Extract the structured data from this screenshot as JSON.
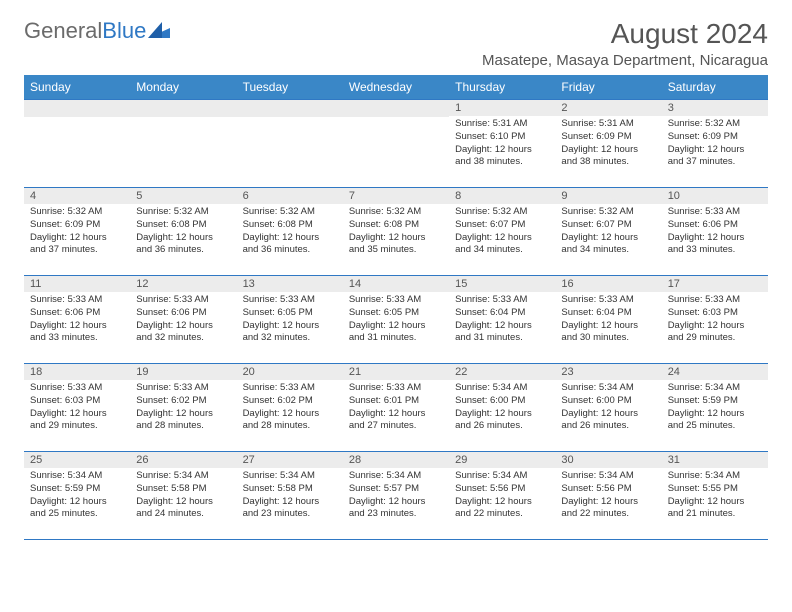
{
  "brand": {
    "part1": "General",
    "part2": "Blue"
  },
  "title": "August 2024",
  "location": "Masatepe, Masaya Department, Nicaragua",
  "colors": {
    "header_bg": "#3a87c7",
    "header_text": "#ffffff",
    "border": "#2f78c4",
    "daynum_bg": "#ececec",
    "text": "#333333",
    "title_text": "#555555"
  },
  "weekdays": [
    "Sunday",
    "Monday",
    "Tuesday",
    "Wednesday",
    "Thursday",
    "Friday",
    "Saturday"
  ],
  "weeks": [
    [
      {
        "n": "",
        "sr": "",
        "ss": "",
        "dl": ""
      },
      {
        "n": "",
        "sr": "",
        "ss": "",
        "dl": ""
      },
      {
        "n": "",
        "sr": "",
        "ss": "",
        "dl": ""
      },
      {
        "n": "",
        "sr": "",
        "ss": "",
        "dl": ""
      },
      {
        "n": "1",
        "sr": "Sunrise: 5:31 AM",
        "ss": "Sunset: 6:10 PM",
        "dl": "Daylight: 12 hours and 38 minutes."
      },
      {
        "n": "2",
        "sr": "Sunrise: 5:31 AM",
        "ss": "Sunset: 6:09 PM",
        "dl": "Daylight: 12 hours and 38 minutes."
      },
      {
        "n": "3",
        "sr": "Sunrise: 5:32 AM",
        "ss": "Sunset: 6:09 PM",
        "dl": "Daylight: 12 hours and 37 minutes."
      }
    ],
    [
      {
        "n": "4",
        "sr": "Sunrise: 5:32 AM",
        "ss": "Sunset: 6:09 PM",
        "dl": "Daylight: 12 hours and 37 minutes."
      },
      {
        "n": "5",
        "sr": "Sunrise: 5:32 AM",
        "ss": "Sunset: 6:08 PM",
        "dl": "Daylight: 12 hours and 36 minutes."
      },
      {
        "n": "6",
        "sr": "Sunrise: 5:32 AM",
        "ss": "Sunset: 6:08 PM",
        "dl": "Daylight: 12 hours and 36 minutes."
      },
      {
        "n": "7",
        "sr": "Sunrise: 5:32 AM",
        "ss": "Sunset: 6:08 PM",
        "dl": "Daylight: 12 hours and 35 minutes."
      },
      {
        "n": "8",
        "sr": "Sunrise: 5:32 AM",
        "ss": "Sunset: 6:07 PM",
        "dl": "Daylight: 12 hours and 34 minutes."
      },
      {
        "n": "9",
        "sr": "Sunrise: 5:32 AM",
        "ss": "Sunset: 6:07 PM",
        "dl": "Daylight: 12 hours and 34 minutes."
      },
      {
        "n": "10",
        "sr": "Sunrise: 5:33 AM",
        "ss": "Sunset: 6:06 PM",
        "dl": "Daylight: 12 hours and 33 minutes."
      }
    ],
    [
      {
        "n": "11",
        "sr": "Sunrise: 5:33 AM",
        "ss": "Sunset: 6:06 PM",
        "dl": "Daylight: 12 hours and 33 minutes."
      },
      {
        "n": "12",
        "sr": "Sunrise: 5:33 AM",
        "ss": "Sunset: 6:06 PM",
        "dl": "Daylight: 12 hours and 32 minutes."
      },
      {
        "n": "13",
        "sr": "Sunrise: 5:33 AM",
        "ss": "Sunset: 6:05 PM",
        "dl": "Daylight: 12 hours and 32 minutes."
      },
      {
        "n": "14",
        "sr": "Sunrise: 5:33 AM",
        "ss": "Sunset: 6:05 PM",
        "dl": "Daylight: 12 hours and 31 minutes."
      },
      {
        "n": "15",
        "sr": "Sunrise: 5:33 AM",
        "ss": "Sunset: 6:04 PM",
        "dl": "Daylight: 12 hours and 31 minutes."
      },
      {
        "n": "16",
        "sr": "Sunrise: 5:33 AM",
        "ss": "Sunset: 6:04 PM",
        "dl": "Daylight: 12 hours and 30 minutes."
      },
      {
        "n": "17",
        "sr": "Sunrise: 5:33 AM",
        "ss": "Sunset: 6:03 PM",
        "dl": "Daylight: 12 hours and 29 minutes."
      }
    ],
    [
      {
        "n": "18",
        "sr": "Sunrise: 5:33 AM",
        "ss": "Sunset: 6:03 PM",
        "dl": "Daylight: 12 hours and 29 minutes."
      },
      {
        "n": "19",
        "sr": "Sunrise: 5:33 AM",
        "ss": "Sunset: 6:02 PM",
        "dl": "Daylight: 12 hours and 28 minutes."
      },
      {
        "n": "20",
        "sr": "Sunrise: 5:33 AM",
        "ss": "Sunset: 6:02 PM",
        "dl": "Daylight: 12 hours and 28 minutes."
      },
      {
        "n": "21",
        "sr": "Sunrise: 5:33 AM",
        "ss": "Sunset: 6:01 PM",
        "dl": "Daylight: 12 hours and 27 minutes."
      },
      {
        "n": "22",
        "sr": "Sunrise: 5:34 AM",
        "ss": "Sunset: 6:00 PM",
        "dl": "Daylight: 12 hours and 26 minutes."
      },
      {
        "n": "23",
        "sr": "Sunrise: 5:34 AM",
        "ss": "Sunset: 6:00 PM",
        "dl": "Daylight: 12 hours and 26 minutes."
      },
      {
        "n": "24",
        "sr": "Sunrise: 5:34 AM",
        "ss": "Sunset: 5:59 PM",
        "dl": "Daylight: 12 hours and 25 minutes."
      }
    ],
    [
      {
        "n": "25",
        "sr": "Sunrise: 5:34 AM",
        "ss": "Sunset: 5:59 PM",
        "dl": "Daylight: 12 hours and 25 minutes."
      },
      {
        "n": "26",
        "sr": "Sunrise: 5:34 AM",
        "ss": "Sunset: 5:58 PM",
        "dl": "Daylight: 12 hours and 24 minutes."
      },
      {
        "n": "27",
        "sr": "Sunrise: 5:34 AM",
        "ss": "Sunset: 5:58 PM",
        "dl": "Daylight: 12 hours and 23 minutes."
      },
      {
        "n": "28",
        "sr": "Sunrise: 5:34 AM",
        "ss": "Sunset: 5:57 PM",
        "dl": "Daylight: 12 hours and 23 minutes."
      },
      {
        "n": "29",
        "sr": "Sunrise: 5:34 AM",
        "ss": "Sunset: 5:56 PM",
        "dl": "Daylight: 12 hours and 22 minutes."
      },
      {
        "n": "30",
        "sr": "Sunrise: 5:34 AM",
        "ss": "Sunset: 5:56 PM",
        "dl": "Daylight: 12 hours and 22 minutes."
      },
      {
        "n": "31",
        "sr": "Sunrise: 5:34 AM",
        "ss": "Sunset: 5:55 PM",
        "dl": "Daylight: 12 hours and 21 minutes."
      }
    ]
  ]
}
